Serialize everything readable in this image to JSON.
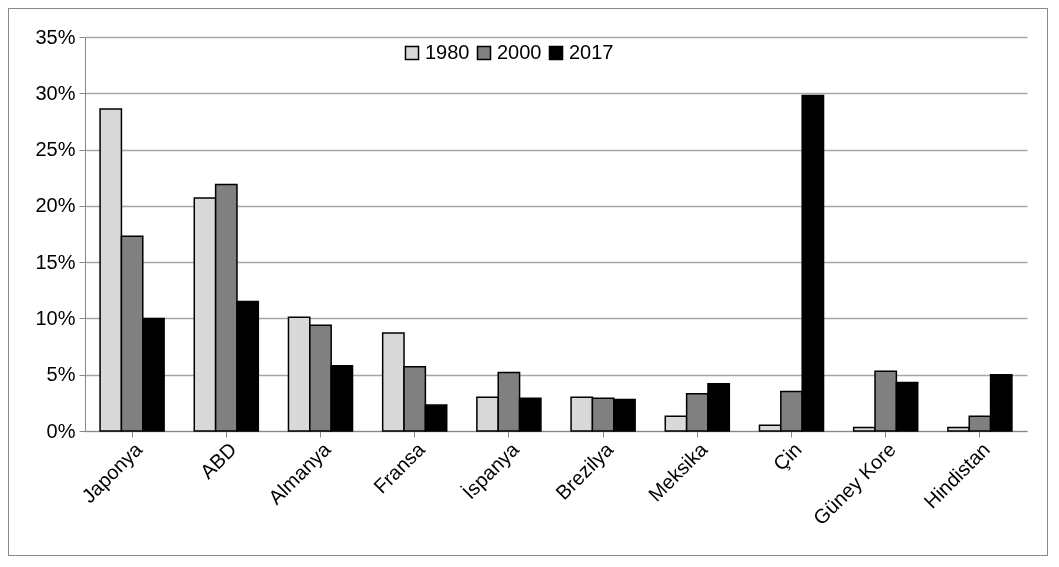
{
  "chart_data": {
    "type": "bar",
    "categories": [
      "Japonya",
      "ABD",
      "Almanya",
      "Fransa",
      "İspanya",
      "Brezilya",
      "Meksika",
      "Çin",
      "Güney Kore",
      "Hindistan"
    ],
    "series": [
      {
        "name": "1980",
        "color": "#d9d9d9",
        "values": [
          28.6,
          20.7,
          10.1,
          8.7,
          3.0,
          3.0,
          1.3,
          0.5,
          0.3,
          0.3
        ]
      },
      {
        "name": "2000",
        "color": "#808080",
        "values": [
          17.3,
          21.9,
          9.4,
          5.7,
          5.2,
          2.9,
          3.3,
          3.5,
          5.3,
          1.3
        ]
      },
      {
        "name": "2017",
        "color": "#000000",
        "values": [
          10.0,
          11.5,
          5.8,
          2.3,
          2.9,
          2.8,
          4.2,
          29.8,
          4.3,
          5.0
        ]
      }
    ],
    "ylim": [
      0,
      35
    ],
    "yticks": [
      {
        "value": 0,
        "label": "0%"
      },
      {
        "value": 5,
        "label": "5%"
      },
      {
        "value": 10,
        "label": "10%"
      },
      {
        "value": 15,
        "label": "15%"
      },
      {
        "value": 20,
        "label": "20%"
      },
      {
        "value": 25,
        "label": "25%"
      },
      {
        "value": 30,
        "label": "30%"
      },
      {
        "value": 35,
        "label": "35%"
      }
    ],
    "grid": "y",
    "legend": "top"
  }
}
